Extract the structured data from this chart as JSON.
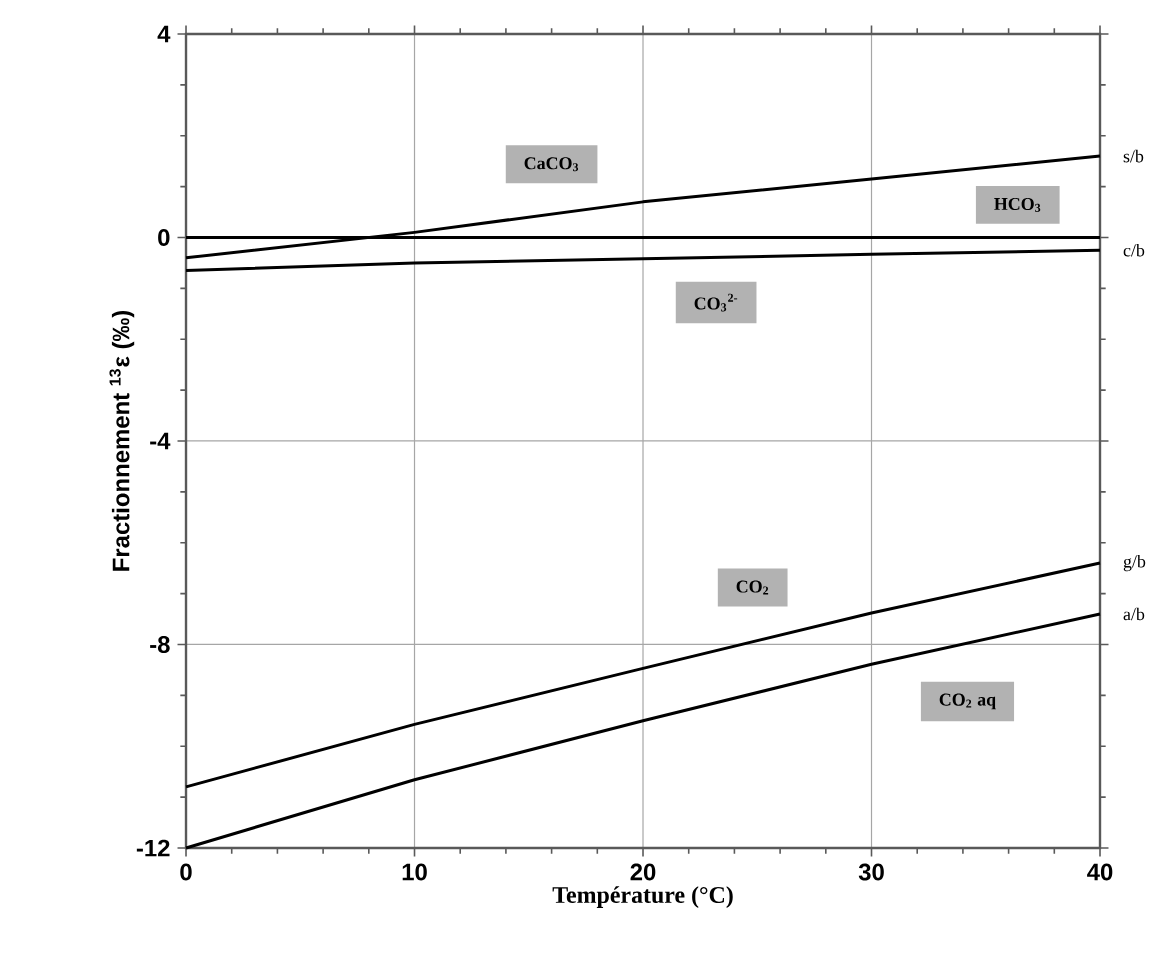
{
  "chart_data": {
    "type": "line",
    "xlabel": "Température (°C)",
    "ylabel": "Fractionnement $^{13}$ε (‰)",
    "x": [
      0,
      10,
      20,
      30,
      40
    ],
    "series": [
      {
        "name": "s/b",
        "color": "#000000",
        "values": [
          -0.4,
          0.1,
          0.7,
          1.15,
          1.6
        ]
      },
      {
        "color": "#000000",
        "values": [
          0,
          0,
          0,
          0,
          0
        ]
      },
      {
        "name": "c/b",
        "color": "#000000",
        "values": [
          -0.65,
          -0.5,
          -0.42,
          -0.33,
          -0.25
        ]
      },
      {
        "name": "g/b",
        "color": "#000000",
        "values": [
          -10.8,
          -9.57,
          -8.47,
          -7.38,
          -6.4
        ]
      },
      {
        "name": "a/b",
        "color": "#000000",
        "values": [
          -12,
          -10.66,
          -9.5,
          -8.39,
          -7.4
        ]
      }
    ],
    "annotations": [
      "CaCO$_{3}$",
      "HCO$_{3}$",
      "CO$_{3}$$^{2-}$",
      "CO$_{2}$",
      "CO$_{2}$ aq"
    ],
    "xlim": [
      0,
      40
    ],
    "ylim": [
      -12,
      4
    ],
    "xticks": [
      0,
      10,
      20,
      30,
      40
    ],
    "yticks": [
      -12,
      -8,
      -4,
      0,
      4
    ],
    "grid": true,
    "marker": "none",
    "line_style": "solid"
  }
}
